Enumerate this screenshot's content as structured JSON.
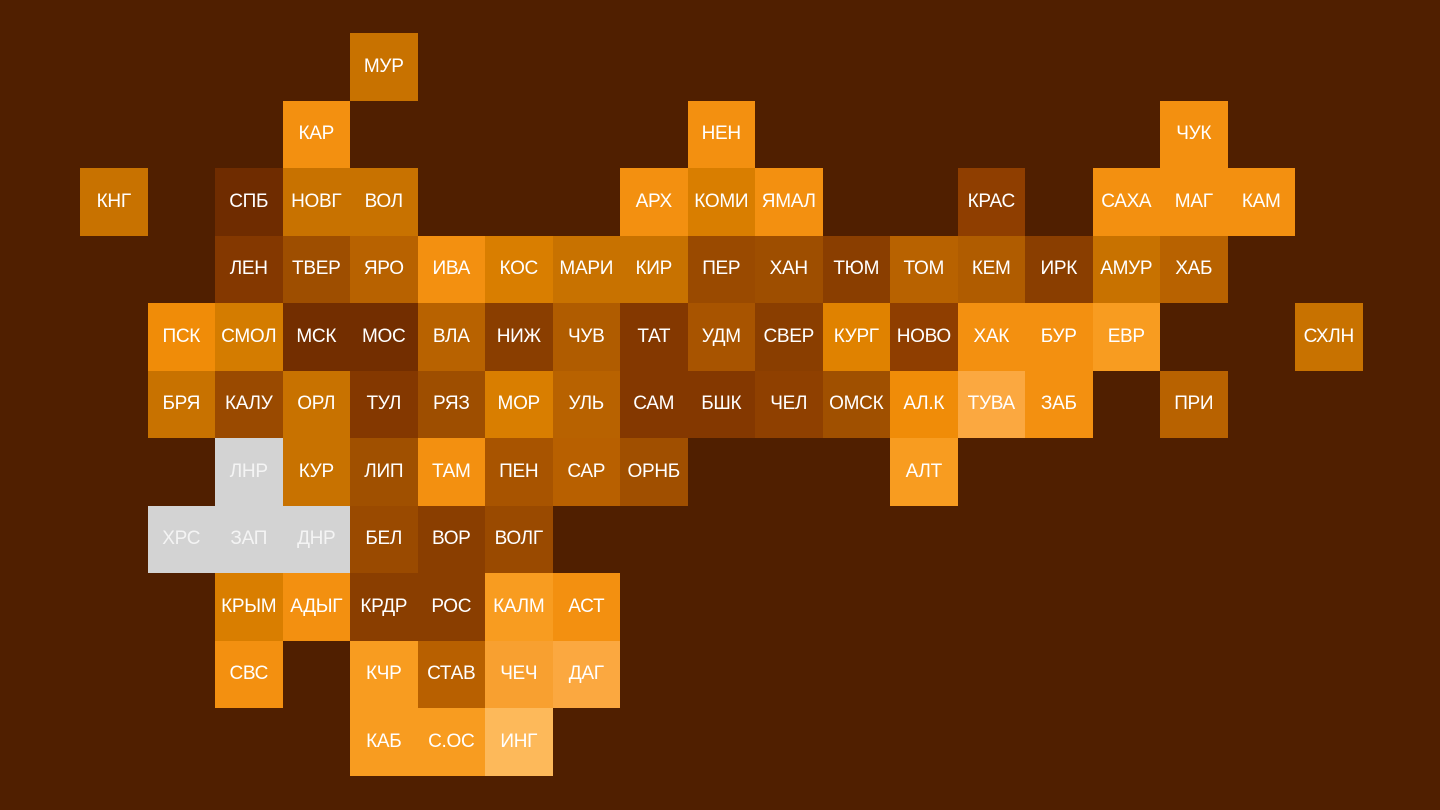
{
  "background_color": "#501f00",
  "no_data_color": "#d3d3d3",
  "tiles": [
    {
      "label": "МУР",
      "col": 4,
      "row": 0,
      "color": "#c87200"
    },
    {
      "label": "КАР",
      "col": 3,
      "row": 1,
      "color": "#f39010"
    },
    {
      "label": "НЕН",
      "col": 9,
      "row": 1,
      "color": "#f39010"
    },
    {
      "label": "ЧУК",
      "col": 16,
      "row": 1,
      "color": "#f39010"
    },
    {
      "label": "КНГ",
      "col": 0,
      "row": 2,
      "color": "#c87200"
    },
    {
      "label": "СПБ",
      "col": 2,
      "row": 2,
      "color": "#6f2c00"
    },
    {
      "label": "НОВГ",
      "col": 3,
      "row": 2,
      "color": "#c87200"
    },
    {
      "label": "ВОЛ",
      "col": 4,
      "row": 2,
      "color": "#c87200"
    },
    {
      "label": "АРХ",
      "col": 8,
      "row": 2,
      "color": "#f39010"
    },
    {
      "label": "КОМИ",
      "col": 9,
      "row": 2,
      "color": "#d97e00"
    },
    {
      "label": "ЯМАЛ",
      "col": 10,
      "row": 2,
      "color": "#f39010"
    },
    {
      "label": "КРАС",
      "col": 13,
      "row": 2,
      "color": "#8f3e00"
    },
    {
      "label": "САХА",
      "col": 15,
      "row": 2,
      "color": "#f39010"
    },
    {
      "label": "МАГ",
      "col": 16,
      "row": 2,
      "color": "#f39010"
    },
    {
      "label": "КАМ",
      "col": 17,
      "row": 2,
      "color": "#f39010"
    },
    {
      "label": "ЛЕН",
      "col": 2,
      "row": 3,
      "color": "#843800"
    },
    {
      "label": "ТВЕР",
      "col": 3,
      "row": 3,
      "color": "#9e4e00"
    },
    {
      "label": "ЯРО",
      "col": 4,
      "row": 3,
      "color": "#b86200"
    },
    {
      "label": "ИВА",
      "col": 5,
      "row": 3,
      "color": "#f39010"
    },
    {
      "label": "КОС",
      "col": 6,
      "row": 3,
      "color": "#d97e00"
    },
    {
      "label": "МАРИ",
      "col": 7,
      "row": 3,
      "color": "#c87200"
    },
    {
      "label": "КИР",
      "col": 8,
      "row": 3,
      "color": "#c87200"
    },
    {
      "label": "ПЕР",
      "col": 9,
      "row": 3,
      "color": "#9a4a00"
    },
    {
      "label": "ХАН",
      "col": 10,
      "row": 3,
      "color": "#9e4e00"
    },
    {
      "label": "ТЮМ",
      "col": 11,
      "row": 3,
      "color": "#8a3e00"
    },
    {
      "label": "ТОМ",
      "col": 12,
      "row": 3,
      "color": "#b86200"
    },
    {
      "label": "КЕМ",
      "col": 13,
      "row": 3,
      "color": "#b05c00"
    },
    {
      "label": "ИРК",
      "col": 14,
      "row": 3,
      "color": "#8a3e00"
    },
    {
      "label": "АМУР",
      "col": 15,
      "row": 3,
      "color": "#c87200"
    },
    {
      "label": "ХАБ",
      "col": 16,
      "row": 3,
      "color": "#b86200"
    },
    {
      "label": "ПСК",
      "col": 1,
      "row": 4,
      "color": "#f08c08"
    },
    {
      "label": "СМОЛ",
      "col": 2,
      "row": 4,
      "color": "#d47c00"
    },
    {
      "label": "МСК",
      "col": 3,
      "row": 4,
      "color": "#732e00"
    },
    {
      "label": "МОС",
      "col": 4,
      "row": 4,
      "color": "#732e00"
    },
    {
      "label": "ВЛА",
      "col": 5,
      "row": 4,
      "color": "#b86200"
    },
    {
      "label": "НИЖ",
      "col": 6,
      "row": 4,
      "color": "#8a3e00"
    },
    {
      "label": "ЧУВ",
      "col": 7,
      "row": 4,
      "color": "#b05c00"
    },
    {
      "label": "ТАТ",
      "col": 8,
      "row": 4,
      "color": "#843800"
    },
    {
      "label": "УДМ",
      "col": 9,
      "row": 4,
      "color": "#a85400"
    },
    {
      "label": "СВЕР",
      "col": 10,
      "row": 4,
      "color": "#8a3e00"
    },
    {
      "label": "КУРГ",
      "col": 11,
      "row": 4,
      "color": "#e08200"
    },
    {
      "label": "НОВО",
      "col": 12,
      "row": 4,
      "color": "#8f3e00"
    },
    {
      "label": "ХАК",
      "col": 13,
      "row": 4,
      "color": "#f39010"
    },
    {
      "label": "БУР",
      "col": 14,
      "row": 4,
      "color": "#f39010"
    },
    {
      "label": "ЕВР",
      "col": 15,
      "row": 4,
      "color": "#f89c20"
    },
    {
      "label": "СХЛН",
      "col": 18,
      "row": 4,
      "color": "#c87200"
    },
    {
      "label": "БРЯ",
      "col": 1,
      "row": 5,
      "color": "#c87200"
    },
    {
      "label": "КАЛУ",
      "col": 2,
      "row": 5,
      "color": "#9a4a00"
    },
    {
      "label": "ОРЛ",
      "col": 3,
      "row": 5,
      "color": "#c87200"
    },
    {
      "label": "ТУЛ",
      "col": 4,
      "row": 5,
      "color": "#843800"
    },
    {
      "label": "РЯЗ",
      "col": 5,
      "row": 5,
      "color": "#9e4e00"
    },
    {
      "label": "МОР",
      "col": 6,
      "row": 5,
      "color": "#d97e00"
    },
    {
      "label": "УЛЬ",
      "col": 7,
      "row": 5,
      "color": "#b86200"
    },
    {
      "label": "САМ",
      "col": 8,
      "row": 5,
      "color": "#843800"
    },
    {
      "label": "БШК",
      "col": 9,
      "row": 5,
      "color": "#843800"
    },
    {
      "label": "ЧЕЛ",
      "col": 10,
      "row": 5,
      "color": "#8f4000"
    },
    {
      "label": "ОМСК",
      "col": 11,
      "row": 5,
      "color": "#a05000"
    },
    {
      "label": "АЛ.К",
      "col": 12,
      "row": 5,
      "color": "#f08c08"
    },
    {
      "label": "ТУВА",
      "col": 13,
      "row": 5,
      "color": "#fba840"
    },
    {
      "label": "ЗАБ",
      "col": 14,
      "row": 5,
      "color": "#f39010"
    },
    {
      "label": "ПРИ",
      "col": 16,
      "row": 5,
      "color": "#b86200"
    },
    {
      "label": "ЛНР",
      "col": 2,
      "row": 6,
      "color": "#d3d3d3",
      "no_data": true
    },
    {
      "label": "КУР",
      "col": 3,
      "row": 6,
      "color": "#c87200"
    },
    {
      "label": "ЛИП",
      "col": 4,
      "row": 6,
      "color": "#a05000"
    },
    {
      "label": "ТАМ",
      "col": 5,
      "row": 6,
      "color": "#f39010"
    },
    {
      "label": "ПЕН",
      "col": 6,
      "row": 6,
      "color": "#a85400"
    },
    {
      "label": "САР",
      "col": 7,
      "row": 6,
      "color": "#b86000"
    },
    {
      "label": "ОРНБ",
      "col": 8,
      "row": 6,
      "color": "#a04f00"
    },
    {
      "label": "АЛТ",
      "col": 12,
      "row": 6,
      "color": "#f89c20"
    },
    {
      "label": "ХРС",
      "col": 1,
      "row": 7,
      "color": "#d3d3d3",
      "no_data": true
    },
    {
      "label": "ЗАП",
      "col": 2,
      "row": 7,
      "color": "#d3d3d3",
      "no_data": true
    },
    {
      "label": "ДНР",
      "col": 3,
      "row": 7,
      "color": "#d3d3d3",
      "no_data": true
    },
    {
      "label": "БЕЛ",
      "col": 4,
      "row": 7,
      "color": "#9a4a00"
    },
    {
      "label": "ВОР",
      "col": 5,
      "row": 7,
      "color": "#8a3e00"
    },
    {
      "label": "ВОЛГ",
      "col": 6,
      "row": 7,
      "color": "#9a4a00"
    },
    {
      "label": "КРЫМ",
      "col": 2,
      "row": 8,
      "color": "#d97e00"
    },
    {
      "label": "АДЫГ",
      "col": 3,
      "row": 8,
      "color": "#f39010"
    },
    {
      "label": "КРДР",
      "col": 4,
      "row": 8,
      "color": "#8a3e00"
    },
    {
      "label": "РОС",
      "col": 5,
      "row": 8,
      "color": "#8a3e00"
    },
    {
      "label": "КАЛМ",
      "col": 6,
      "row": 8,
      "color": "#f89c20"
    },
    {
      "label": "АСТ",
      "col": 7,
      "row": 8,
      "color": "#f39010"
    },
    {
      "label": "СВС",
      "col": 2,
      "row": 9,
      "color": "#f39010"
    },
    {
      "label": "КЧР",
      "col": 4,
      "row": 9,
      "color": "#f89c20"
    },
    {
      "label": "СТАВ",
      "col": 5,
      "row": 9,
      "color": "#b86000"
    },
    {
      "label": "ЧЕЧ",
      "col": 6,
      "row": 9,
      "color": "#f8a030"
    },
    {
      "label": "ДАГ",
      "col": 7,
      "row": 9,
      "color": "#fba840"
    },
    {
      "label": "КАБ",
      "col": 4,
      "row": 10,
      "color": "#f89c20"
    },
    {
      "label": "С.ОС",
      "col": 5,
      "row": 10,
      "color": "#f89c20"
    },
    {
      "label": "ИНГ",
      "col": 6,
      "row": 10,
      "color": "#fdb95a"
    }
  ]
}
